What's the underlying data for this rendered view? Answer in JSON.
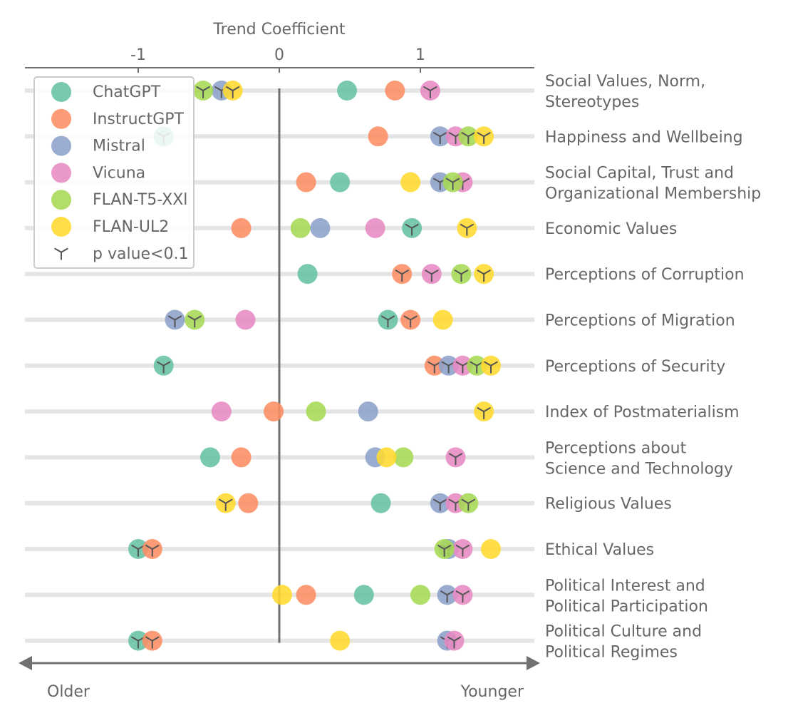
{
  "chart_data": {
    "type": "scatter",
    "title": "",
    "xlabel": "Trend Coefficient",
    "xlim": [
      -1.8,
      1.8
    ],
    "x_ticks": [
      -1,
      0,
      1
    ],
    "x_tick_labels": [
      "-1",
      "0",
      "1"
    ],
    "direction": {
      "left": "Older",
      "right": "Younger"
    },
    "categories": [
      "Social Values, Norm,\nStereotypes",
      "Happiness and Wellbeing",
      "Social Capital, Trust and\nOrganizational Membership",
      "Economic Values",
      "Perceptions of Corruption",
      "Perceptions of Migration",
      "Perceptions of Security",
      "Index of Postmaterialism",
      "Perceptions about\nScience and Technology",
      "Religious Values",
      "Ethical Values",
      "Political Interest and\nPolitical Participation",
      "Political Culture and\nPolitical Regimes"
    ],
    "series": [
      {
        "name": "ChatGPT",
        "color": "#66c2a5",
        "values": [
          0.48,
          -0.82,
          0.43,
          0.94,
          0.2,
          0.77,
          -0.82,
          null,
          -0.49,
          0.72,
          -1.0,
          0.6,
          -1.0
        ],
        "significant": [
          false,
          true,
          false,
          true,
          false,
          true,
          true,
          false,
          false,
          false,
          true,
          false,
          true
        ]
      },
      {
        "name": "InstructGPT",
        "color": "#fc8d62",
        "values": [
          0.82,
          0.7,
          0.19,
          -0.27,
          0.87,
          0.93,
          1.1,
          -0.04,
          -0.27,
          -0.22,
          -0.9,
          0.19,
          -0.9
        ],
        "significant": [
          false,
          false,
          false,
          false,
          true,
          true,
          true,
          false,
          false,
          false,
          true,
          false,
          true
        ]
      },
      {
        "name": "Mistral",
        "color": "#8da0cb",
        "values": [
          -0.41,
          1.14,
          1.14,
          0.29,
          null,
          -0.74,
          1.2,
          0.63,
          0.68,
          1.14,
          1.2,
          1.19,
          1.19
        ],
        "significant": [
          true,
          true,
          true,
          false,
          false,
          true,
          true,
          false,
          false,
          true,
          true,
          true,
          true
        ]
      },
      {
        "name": "Vicuna",
        "color": "#e78ac3",
        "values": [
          1.07,
          1.25,
          1.3,
          0.68,
          1.08,
          -0.24,
          1.3,
          -0.41,
          1.25,
          1.25,
          1.3,
          1.3,
          1.24
        ],
        "significant": [
          true,
          true,
          true,
          false,
          true,
          false,
          true,
          false,
          true,
          true,
          true,
          true,
          true
        ]
      },
      {
        "name": "FLAN-T5-XXl",
        "color": "#a6d854",
        "values": [
          -0.54,
          1.34,
          1.23,
          0.15,
          1.29,
          -0.6,
          1.4,
          0.26,
          0.88,
          1.34,
          1.17,
          1.0,
          null
        ],
        "significant": [
          true,
          true,
          true,
          false,
          true,
          true,
          true,
          false,
          false,
          true,
          true,
          false,
          false
        ]
      },
      {
        "name": "FLAN-UL2",
        "color": "#ffd92f",
        "values": [
          -0.33,
          1.45,
          0.93,
          1.33,
          1.45,
          1.16,
          1.5,
          1.45,
          0.76,
          -0.38,
          1.5,
          0.02,
          0.43
        ],
        "significant": [
          true,
          true,
          false,
          true,
          true,
          false,
          true,
          true,
          false,
          true,
          false,
          false,
          false
        ]
      }
    ],
    "legend": {
      "placement": "top-left",
      "entries": [
        "ChatGPT",
        "InstructGPT",
        "Mistral",
        "Vicuna",
        "FLAN-T5-XXl",
        "FLAN-UL2",
        "p value<0.1"
      ],
      "significance_label": "p value<0.1"
    },
    "colors": {
      "axis": "#707070",
      "row_line": "#e5e5e5",
      "text": "#666666",
      "marker_mark": "#555555"
    }
  }
}
